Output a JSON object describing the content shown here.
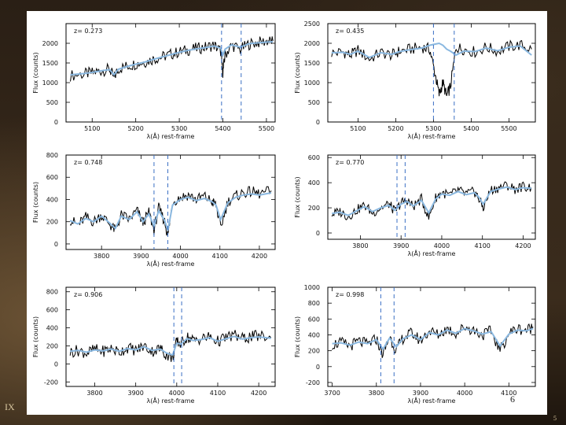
{
  "slide": {
    "left_corner_text": "IX",
    "right_corner_text": "5",
    "panel_page_number": "6"
  },
  "colors": {
    "spectrum": "#000000",
    "model": "#8ab8e0",
    "marker": "#3a6fc4",
    "background": "#ffffff"
  },
  "chart_data": [
    {
      "type": "line",
      "annotation": "z= 0.273",
      "xlabel": "λ(Å) rest-frame",
      "ylabel": "Flux (counts)",
      "xlim": [
        5040,
        5520
      ],
      "ylim": [
        0,
        2500
      ],
      "xticks": [
        5100,
        5200,
        5300,
        5400,
        5500
      ],
      "yticks": [
        0,
        500,
        1000,
        1500,
        2000
      ],
      "markers": [
        5397,
        5442
      ],
      "series": [
        {
          "role": "spectrum",
          "x": [
            5050,
            5080,
            5100,
            5120,
            5140,
            5150,
            5160,
            5180,
            5200,
            5220,
            5240,
            5260,
            5280,
            5300,
            5320,
            5340,
            5360,
            5380,
            5395,
            5400,
            5405,
            5420,
            5440,
            5460,
            5480,
            5500,
            5515
          ],
          "y": [
            1180,
            1220,
            1250,
            1300,
            1340,
            1120,
            1350,
            1420,
            1480,
            1520,
            1600,
            1650,
            1720,
            1780,
            1830,
            1870,
            1900,
            1950,
            1800,
            1250,
            1700,
            1950,
            1850,
            1980,
            2020,
            2050,
            2060
          ]
        },
        {
          "role": "model",
          "x": [
            5050,
            5080,
            5100,
            5120,
            5140,
            5150,
            5160,
            5180,
            5200,
            5220,
            5240,
            5260,
            5280,
            5300,
            5320,
            5340,
            5360,
            5380,
            5395,
            5400,
            5405,
            5420,
            5440,
            5460,
            5480,
            5500,
            5515
          ],
          "y": [
            1200,
            1230,
            1260,
            1300,
            1330,
            1200,
            1340,
            1410,
            1470,
            1520,
            1590,
            1650,
            1710,
            1770,
            1820,
            1860,
            1890,
            1930,
            1880,
            1700,
            1850,
            1960,
            1900,
            1990,
            2010,
            2030,
            2040
          ]
        }
      ]
    },
    {
      "type": "line",
      "annotation": "z= 0.435",
      "xlabel": "λ(Å) rest-frame",
      "ylabel": "Flux (counts)",
      "xlim": [
        5020,
        5570
      ],
      "ylim": [
        0,
        2500
      ],
      "xticks": [
        5100,
        5200,
        5300,
        5400,
        5500
      ],
      "yticks": [
        0,
        500,
        1000,
        1500,
        2000,
        2500
      ],
      "markers": [
        5300,
        5355
      ],
      "series": [
        {
          "role": "spectrum",
          "x": [
            5030,
            5060,
            5080,
            5100,
            5130,
            5160,
            5190,
            5210,
            5240,
            5270,
            5290,
            5305,
            5315,
            5325,
            5335,
            5345,
            5360,
            5380,
            5410,
            5440,
            5470,
            5500,
            5530,
            5560
          ],
          "y": [
            1750,
            1780,
            1700,
            1820,
            1600,
            1760,
            1700,
            1800,
            1850,
            1900,
            1850,
            1200,
            700,
            1000,
            650,
            900,
            1900,
            1850,
            1780,
            1900,
            1800,
            1920,
            1950,
            1850
          ]
        },
        {
          "role": "model",
          "x": [
            5030,
            5060,
            5080,
            5100,
            5130,
            5160,
            5190,
            5210,
            5240,
            5270,
            5290,
            5305,
            5315,
            5325,
            5335,
            5345,
            5360,
            5380,
            5410,
            5440,
            5470,
            5500,
            5530,
            5560
          ],
          "y": [
            1760,
            1770,
            1720,
            1800,
            1640,
            1760,
            1720,
            1790,
            1840,
            1880,
            1950,
            1980,
            2000,
            1950,
            1850,
            1800,
            1700,
            1800,
            1790,
            1880,
            1810,
            1900,
            1930,
            1700
          ]
        }
      ]
    },
    {
      "type": "line",
      "annotation": "z= 0.748",
      "xlabel": "λ(Å) rest-frame",
      "ylabel": "Flux (counts)",
      "xlim": [
        3710,
        4240
      ],
      "ylim": [
        -50,
        800
      ],
      "xticks": [
        3800,
        3900,
        4000,
        4100,
        4200
      ],
      "yticks": [
        0,
        200,
        400,
        600,
        800
      ],
      "markers": [
        3933,
        3968
      ],
      "series": [
        {
          "role": "spectrum",
          "x": [
            3720,
            3740,
            3760,
            3780,
            3800,
            3820,
            3835,
            3850,
            3870,
            3890,
            3905,
            3920,
            3933,
            3945,
            3960,
            3968,
            3980,
            4000,
            4020,
            4040,
            4060,
            4080,
            4090,
            4102,
            4120,
            4140,
            4160,
            4180,
            4200,
            4230
          ],
          "y": [
            220,
            170,
            240,
            200,
            260,
            180,
            120,
            260,
            220,
            300,
            190,
            280,
            130,
            320,
            200,
            70,
            380,
            420,
            440,
            400,
            430,
            380,
            350,
            150,
            380,
            430,
            460,
            470,
            450,
            480
          ]
        },
        {
          "role": "model",
          "x": [
            3720,
            3740,
            3760,
            3780,
            3800,
            3820,
            3835,
            3850,
            3870,
            3890,
            3905,
            3920,
            3933,
            3945,
            3960,
            3968,
            3980,
            4000,
            4020,
            4040,
            4060,
            4080,
            4090,
            4102,
            4120,
            4140,
            4160,
            4180,
            4200,
            4230
          ],
          "y": [
            210,
            180,
            230,
            200,
            250,
            190,
            140,
            250,
            220,
            290,
            200,
            270,
            160,
            300,
            210,
            120,
            350,
            400,
            420,
            390,
            410,
            380,
            350,
            220,
            370,
            420,
            440,
            450,
            440,
            460
          ]
        }
      ]
    },
    {
      "type": "line",
      "annotation": "z= 0.770",
      "xlabel": "λ(Å) rest-frame",
      "ylabel": "Flux (counts)",
      "xlim": [
        3720,
        4230
      ],
      "ylim": [
        -50,
        620
      ],
      "xticks": [
        3800,
        3900,
        4000,
        4100,
        4200
      ],
      "yticks": [
        0,
        200,
        400,
        600
      ],
      "markers": [
        3890,
        3910
      ],
      "series": [
        {
          "role": "spectrum",
          "x": [
            3730,
            3750,
            3770,
            3790,
            3810,
            3830,
            3850,
            3870,
            3885,
            3900,
            3915,
            3930,
            3950,
            3968,
            3985,
            4000,
            4020,
            4040,
            4060,
            4080,
            4090,
            4102,
            4120,
            4140,
            4160,
            4180,
            4200,
            4220
          ],
          "y": [
            150,
            170,
            130,
            180,
            220,
            160,
            200,
            230,
            170,
            240,
            260,
            210,
            270,
            120,
            280,
            320,
            300,
            340,
            310,
            330,
            280,
            200,
            340,
            360,
            380,
            350,
            370,
            360
          ]
        },
        {
          "role": "model",
          "x": [
            3730,
            3750,
            3770,
            3790,
            3810,
            3830,
            3850,
            3870,
            3885,
            3900,
            3915,
            3930,
            3950,
            3968,
            3985,
            4000,
            4020,
            4040,
            4060,
            4080,
            4090,
            4102,
            4120,
            4140,
            4160,
            4180,
            4200,
            4220
          ],
          "y": [
            155,
            165,
            140,
            175,
            210,
            170,
            200,
            220,
            180,
            230,
            250,
            215,
            260,
            160,
            270,
            310,
            300,
            330,
            305,
            320,
            290,
            230,
            330,
            350,
            365,
            345,
            360,
            355
          ]
        }
      ]
    },
    {
      "type": "line",
      "annotation": "z= 0.906",
      "xlabel": "λ(Å) rest-frame",
      "ylabel": "Flux (counts)",
      "xlim": [
        3730,
        4240
      ],
      "ylim": [
        -250,
        850
      ],
      "xticks": [
        3800,
        3900,
        4000,
        4100,
        4200
      ],
      "yticks": [
        -200,
        0,
        200,
        400,
        600,
        800
      ],
      "markers": [
        3993,
        4012
      ],
      "series": [
        {
          "role": "spectrum",
          "x": [
            3740,
            3760,
            3780,
            3800,
            3820,
            3840,
            3860,
            3880,
            3900,
            3920,
            3940,
            3960,
            3975,
            3990,
            4000,
            4010,
            4025,
            4040,
            4060,
            4080,
            4100,
            4120,
            4140,
            4160,
            4180,
            4200,
            4230
          ],
          "y": [
            130,
            150,
            120,
            160,
            140,
            170,
            130,
            180,
            150,
            200,
            140,
            170,
            100,
            60,
            250,
            220,
            300,
            260,
            280,
            300,
            250,
            290,
            320,
            280,
            300,
            310,
            290
          ]
        },
        {
          "role": "model",
          "x": [
            3740,
            3760,
            3780,
            3800,
            3820,
            3840,
            3860,
            3880,
            3900,
            3920,
            3940,
            3960,
            3975,
            3990,
            4000,
            4010,
            4025,
            4040,
            4060,
            4080,
            4100,
            4120,
            4140,
            4160,
            4180,
            4200,
            4230
          ],
          "y": [
            140,
            150,
            130,
            155,
            145,
            165,
            140,
            170,
            155,
            190,
            150,
            165,
            120,
            100,
            230,
            220,
            280,
            260,
            270,
            290,
            250,
            280,
            305,
            275,
            290,
            300,
            285
          ]
        }
      ]
    },
    {
      "type": "line",
      "annotation": "z= 0.998",
      "xlabel": "λ(Å) rest-frame",
      "ylabel": "Flux (counts)",
      "xlim": [
        3690,
        4160
      ],
      "ylim": [
        -250,
        1000
      ],
      "xticks": [
        3700,
        3800,
        3900,
        4000,
        4100
      ],
      "yticks": [
        -200,
        0,
        200,
        400,
        600,
        800,
        1000
      ],
      "markers": [
        3810,
        3840
      ],
      "series": [
        {
          "role": "spectrum",
          "x": [
            3700,
            3720,
            3740,
            3760,
            3780,
            3800,
            3815,
            3830,
            3845,
            3860,
            3880,
            3900,
            3920,
            3940,
            3960,
            3980,
            4000,
            4020,
            4040,
            4060,
            4080,
            4100,
            4120,
            4140,
            4155
          ],
          "y": [
            280,
            300,
            260,
            320,
            280,
            350,
            150,
            380,
            200,
            360,
            420,
            330,
            450,
            400,
            480,
            420,
            500,
            460,
            400,
            450,
            200,
            420,
            480,
            460,
            500
          ]
        },
        {
          "role": "model",
          "x": [
            3700,
            3720,
            3740,
            3760,
            3780,
            3800,
            3815,
            3830,
            3845,
            3860,
            3880,
            3900,
            3920,
            3940,
            3960,
            3980,
            4000,
            4020,
            4040,
            4060,
            4080,
            4100,
            4120,
            4140,
            4155
          ],
          "y": [
            290,
            300,
            270,
            310,
            290,
            340,
            220,
            360,
            250,
            350,
            400,
            340,
            430,
            400,
            460,
            420,
            480,
            450,
            410,
            440,
            260,
            410,
            460,
            450,
            480
          ]
        }
      ]
    }
  ]
}
